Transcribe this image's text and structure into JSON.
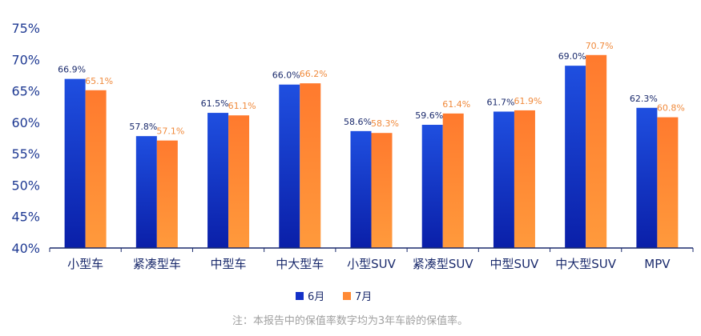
{
  "chart_data": {
    "type": "bar",
    "categories": [
      "小型车",
      "紧凑型车",
      "中型车",
      "中大型车",
      "小型SUV",
      "紧凑型SUV",
      "中型SUV",
      "中大型SUV",
      "MPV"
    ],
    "series": [
      {
        "name": "6月",
        "values": [
          66.9,
          57.8,
          61.5,
          66.0,
          58.6,
          59.6,
          61.7,
          69.0,
          62.3
        ],
        "labels": [
          "66.9%",
          "57.8%",
          "61.5%",
          "66.0%",
          "58.6%",
          "59.6%",
          "61.7%",
          "69.0%",
          "62.3%"
        ],
        "color_top": "#1f4fe0",
        "color_bottom": "#0a1fa8",
        "label_color": "#1a2a6c"
      },
      {
        "name": "7月",
        "values": [
          65.1,
          57.1,
          61.1,
          66.2,
          58.3,
          61.4,
          61.9,
          70.7,
          60.8
        ],
        "labels": [
          "65.1%",
          "57.1%",
          "61.1%",
          "66.2%",
          "58.3%",
          "61.4%",
          "61.9%",
          "70.7%",
          "60.8%"
        ],
        "color_top": "#ff7a2e",
        "color_bottom": "#ff9a3c",
        "label_color": "#f08a3c"
      }
    ],
    "ylim": [
      40,
      75
    ],
    "yticks": [
      40,
      45,
      50,
      55,
      60,
      65,
      70,
      75
    ],
    "ytick_labels": [
      "40%",
      "45%",
      "50%",
      "55%",
      "60%",
      "65%",
      "70%",
      "75%"
    ],
    "grid": false,
    "legend_position": "bottom"
  },
  "footnote": "注：本报告中的保值率数字均为3年车龄的保值率。"
}
